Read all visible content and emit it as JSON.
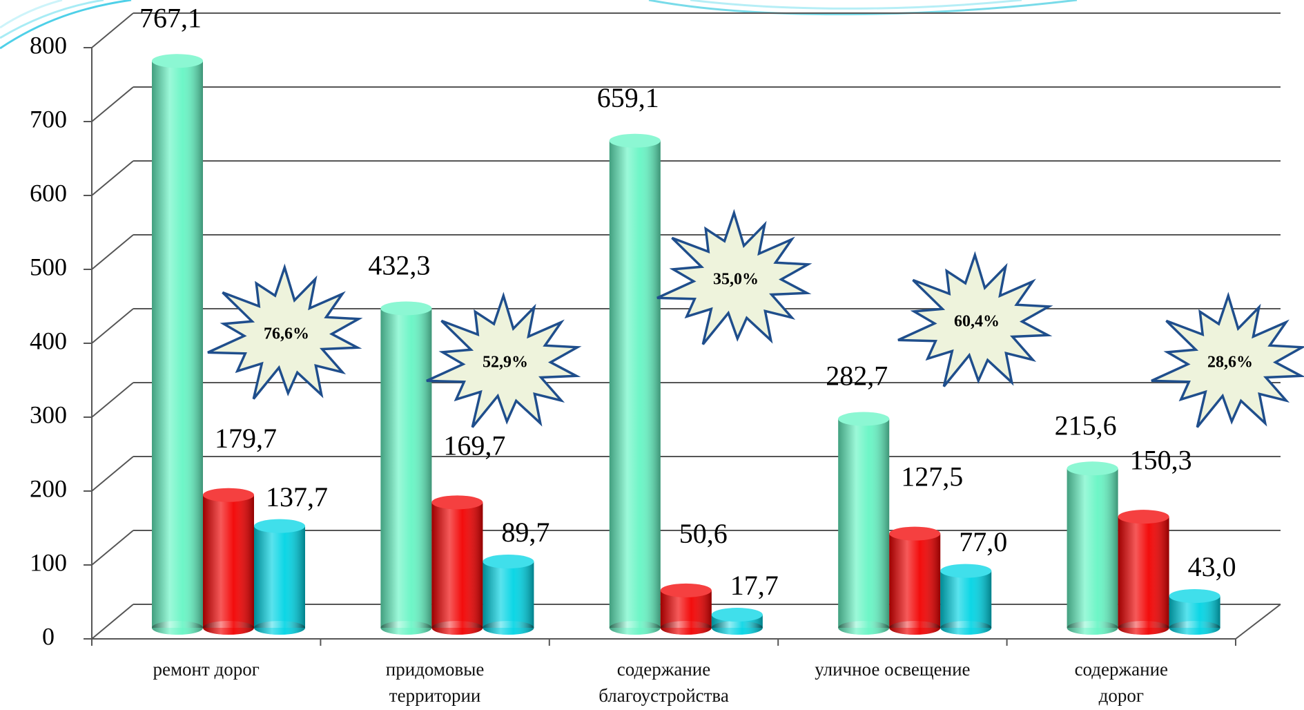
{
  "chart_data": {
    "type": "bar",
    "categories": [
      "ремонт дорог",
      "придомовые\nтерритории",
      "содержание\nблагоустройства",
      "уличное освещение",
      "содержание\nдорог"
    ],
    "series": [
      {
        "color": "#66f5c4",
        "values": [
          767.1,
          432.3,
          659.1,
          282.7,
          215.6
        ],
        "value_labels": [
          "767,1",
          "432,3",
          "659,1",
          "282,7",
          "215,6"
        ]
      },
      {
        "color": "#f20000",
        "values": [
          179.7,
          169.7,
          50.6,
          127.5,
          150.3
        ],
        "value_labels": [
          "179,7",
          "169,7",
          "50,6",
          "127,5",
          "150,3"
        ]
      },
      {
        "color": "#00d4e4",
        "values": [
          137.7,
          89.7,
          17.7,
          77.0,
          43.0
        ],
        "value_labels": [
          "137,7",
          "89,7",
          "17,7",
          "77,0",
          "43,0"
        ]
      }
    ],
    "annotations": [
      "76,6%",
      "52,9%",
      "35,0%",
      "60,4%",
      "28,6%"
    ],
    "ylim": [
      0,
      800
    ],
    "yticks": [
      0,
      100,
      200,
      300,
      400,
      500,
      600,
      700,
      800
    ],
    "grid": true
  }
}
